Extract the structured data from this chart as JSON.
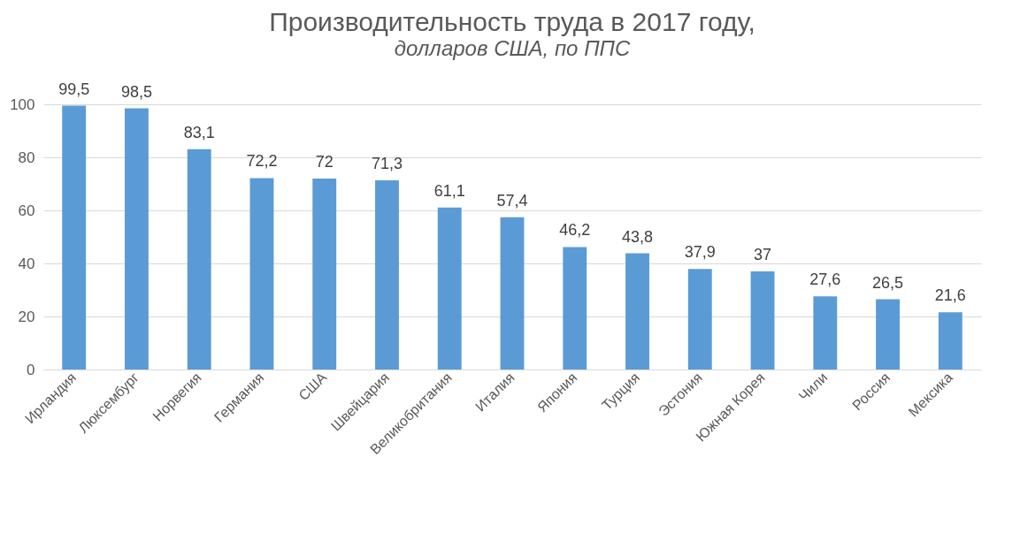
{
  "chart_data": {
    "type": "bar",
    "title": "Производительность труда в 2017 году,",
    "subtitle": "долларов США, по ППС",
    "categories": [
      "Ирландия",
      "Люксембург",
      "Норвегия",
      "Германия",
      "США",
      "Швейцария",
      "Великобритания",
      "Италия",
      "Япония",
      "Турция",
      "Эстония",
      "Южная Корея",
      "Чили",
      "Россия",
      "Мексика"
    ],
    "values": [
      99.5,
      98.5,
      83.1,
      72.2,
      72,
      71.3,
      61.1,
      57.4,
      46.2,
      43.8,
      37.9,
      37,
      27.6,
      26.5,
      21.6
    ],
    "value_labels": [
      "99,5",
      "98,5",
      "83,1",
      "72,2",
      "72",
      "71,3",
      "61,1",
      "57,4",
      "46,2",
      "43,8",
      "37,9",
      "37",
      "27,6",
      "26,5",
      "21,6"
    ],
    "color": "#5b9bd5",
    "ylim": [
      0,
      100
    ],
    "yticks": [
      0,
      20,
      40,
      60,
      80,
      100
    ],
    "grid": "y"
  }
}
